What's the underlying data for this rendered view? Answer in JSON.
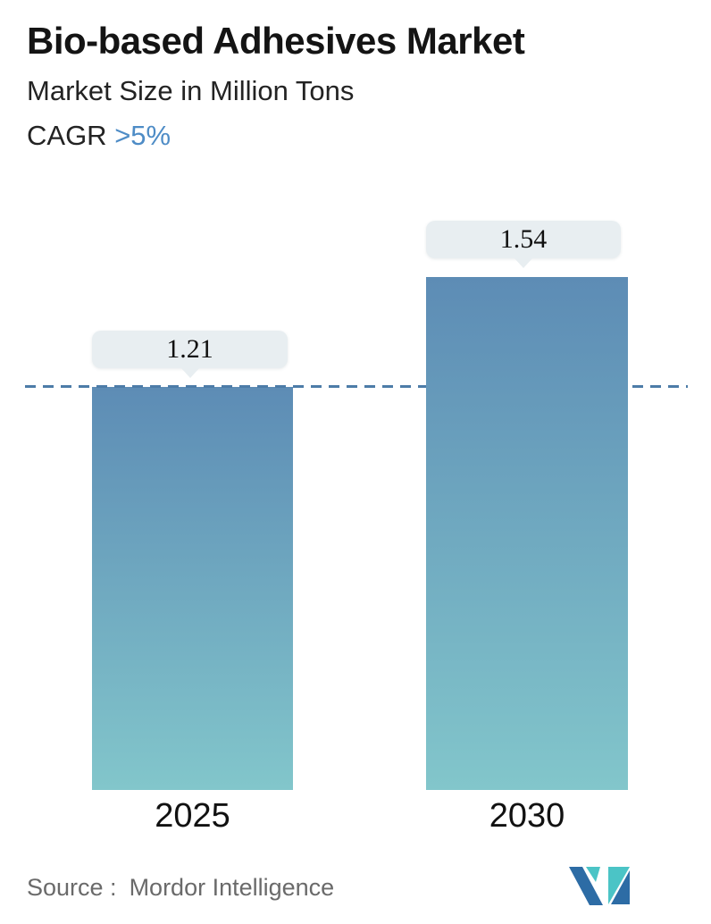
{
  "header": {
    "title": "Bio-based Adhesives Market",
    "subtitle": "Market Size in Million Tons",
    "cagr_label": "CAGR ",
    "cagr_value": ">5%"
  },
  "chart_data": {
    "type": "bar",
    "title": "Bio-based Adhesives Market",
    "subtitle": "Market Size in Million Tons",
    "unit": "Million Tons",
    "cagr": ">5%",
    "categories": [
      "2025",
      "2030"
    ],
    "values": [
      1.21,
      1.54
    ],
    "value_labels": [
      "1.21",
      "1.54"
    ],
    "ylim": [
      0,
      1.54
    ],
    "grid": "off",
    "legend": "none",
    "reference_line": {
      "style": "dashed",
      "at_value": 1.21
    },
    "bar_gradient": [
      "#5d8cb5",
      "#82c6cb"
    ]
  },
  "footer": {
    "source_label": "Source :",
    "source_value": "Mordor Intelligence",
    "logo": "mordor-intelligence-logo"
  },
  "colors": {
    "bar_top": "#5d8cb5",
    "bar_bottom": "#82c6cb",
    "dash_line": "#4d7ca8",
    "callout_bg": "#e8eef1",
    "cagr_accent": "#4e8cc6",
    "title_text": "#141414",
    "source_text": "#6a6a6a",
    "logo_blue": "#2d6ca5",
    "logo_teal": "#4bc4c6"
  }
}
